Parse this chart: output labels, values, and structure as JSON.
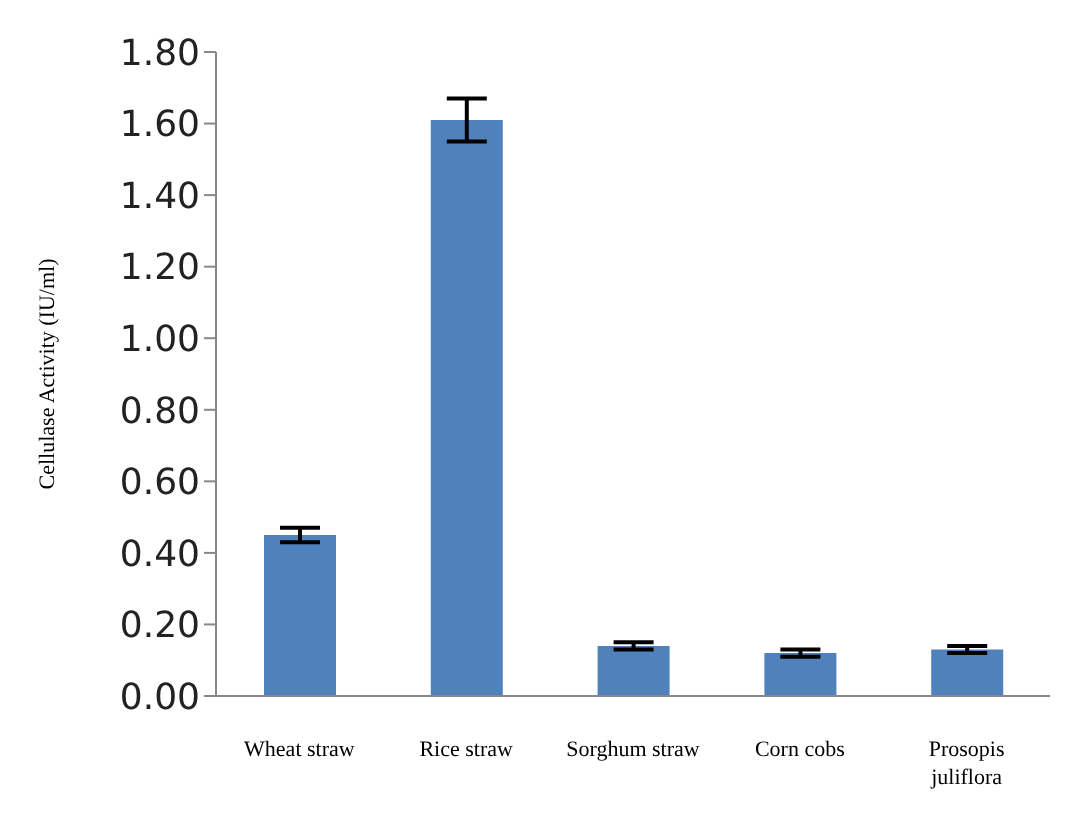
{
  "chart_data": {
    "type": "bar",
    "ylabel": "Cellulase Activity (IU/ml)",
    "categories": [
      "Wheat straw",
      "Rice straw",
      "Sorghum straw",
      "Corn cobs",
      "Prosopis juliflora"
    ],
    "values": [
      0.45,
      1.61,
      0.14,
      0.12,
      0.13
    ],
    "errors": [
      0.02,
      0.06,
      0.01,
      0.01,
      0.01
    ],
    "color": "#4f81bd",
    "ylim": [
      0,
      1.8
    ],
    "yticks": [
      {
        "value": 0,
        "label": "0.00"
      },
      {
        "value": 0.2,
        "label": "0.20"
      },
      {
        "value": 0.4,
        "label": "0.40"
      },
      {
        "value": 0.6,
        "label": "0.60"
      },
      {
        "value": 0.8,
        "label": "0.80"
      },
      {
        "value": 1.0,
        "label": "1.00"
      },
      {
        "value": 1.2,
        "label": "1.20"
      },
      {
        "value": 1.4,
        "label": "1.40"
      },
      {
        "value": 1.6,
        "label": "1.60"
      },
      {
        "value": 1.8,
        "label": "1.80"
      }
    ]
  }
}
